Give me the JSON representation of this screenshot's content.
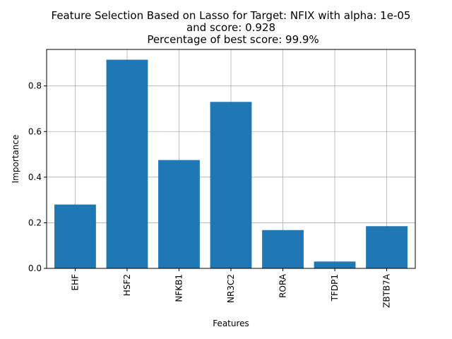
{
  "chart_data": {
    "type": "bar",
    "title": [
      "Feature Selection Based on Lasso for Target: NFIX with alpha: 1e-05",
      "and score: 0.928",
      "Percentage of best score: 99.9%"
    ],
    "xlabel": "Features",
    "ylabel": "Importance",
    "categories": [
      "EHF",
      "HSF2",
      "NFKB1",
      "NR3C2",
      "RORA",
      "TFDP1",
      "ZBTB7A"
    ],
    "values": [
      0.28,
      0.915,
      0.475,
      0.73,
      0.168,
      0.03,
      0.185
    ],
    "ylim": [
      0,
      0.96
    ],
    "yticks": [
      "0.0",
      "0.2",
      "0.4",
      "0.6",
      "0.8"
    ],
    "grid": true,
    "bar_color": "#1f77b4",
    "grid_color": "#b0b0b0"
  }
}
